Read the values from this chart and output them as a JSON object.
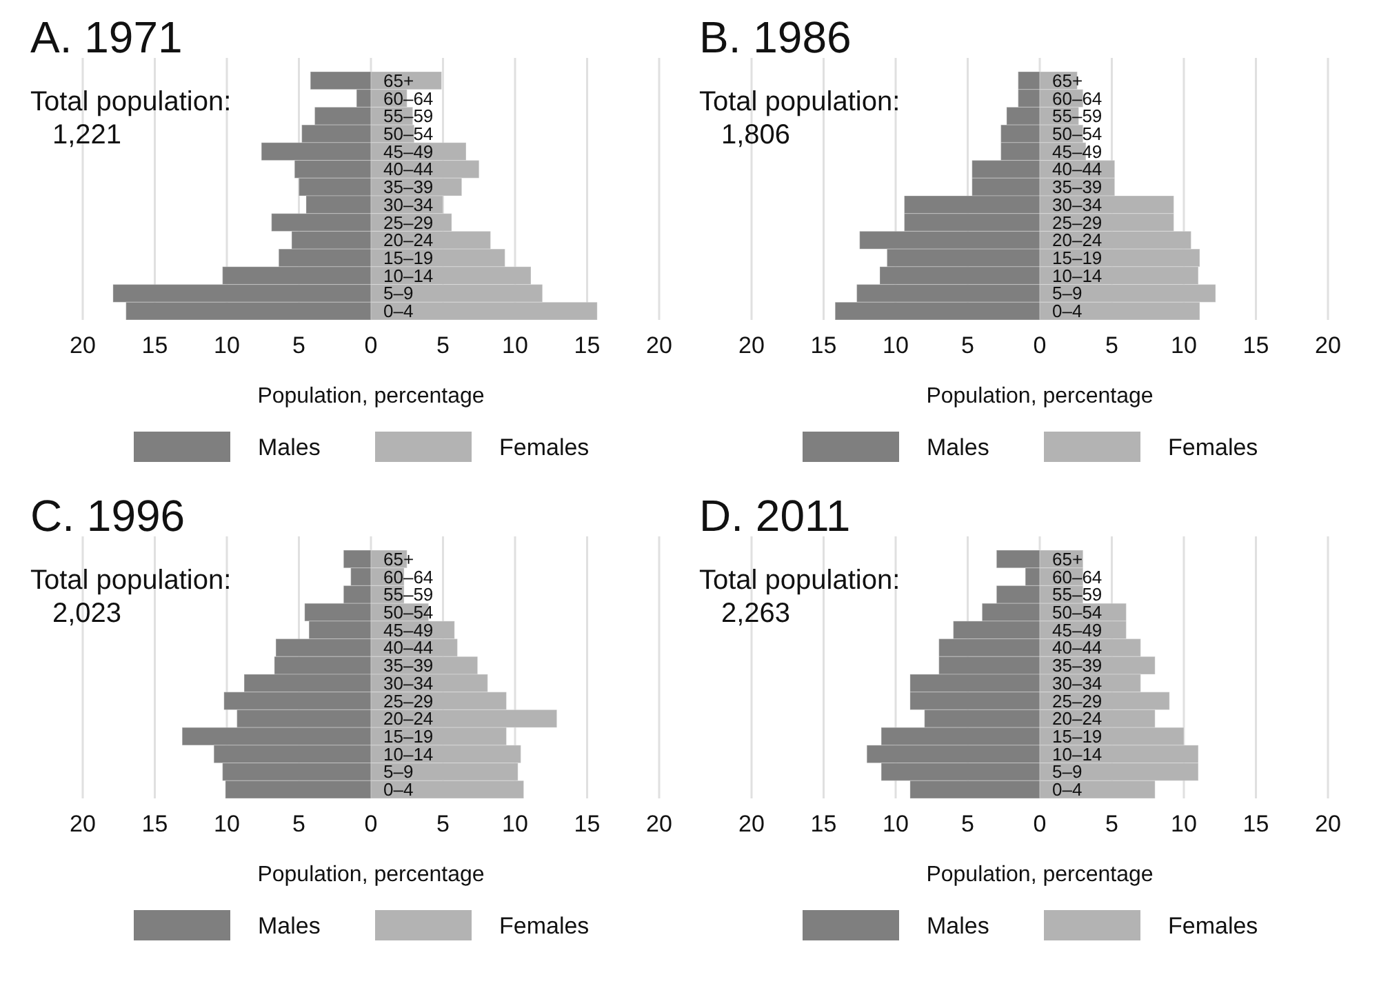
{
  "chart_data": [
    {
      "type": "bar",
      "orientation": "horizontal",
      "stacked": true,
      "title": "A. 1971",
      "subtitle": "Total population:",
      "annotations": [
        "1,221"
      ],
      "xlabel": "Population, percentage",
      "categories": [
        "65+",
        "60–64",
        "55–59",
        "50–54",
        "45–49",
        "40–44",
        "35–39",
        "30–34",
        "25–29",
        "20–24",
        "15–19",
        "10–14",
        "5–9",
        "0–4"
      ],
      "series": [
        {
          "name": "Males",
          "color": "#7f7f7f",
          "values": [
            -4.2,
            -1.0,
            -3.9,
            -4.8,
            -7.6,
            -5.3,
            -5.0,
            -4.5,
            -6.9,
            -5.5,
            -6.4,
            -10.3,
            -17.9,
            -17.0
          ]
        },
        {
          "name": "Females",
          "color": "#b3b3b3",
          "values": [
            4.9,
            2.5,
            2.9,
            3.0,
            6.6,
            7.5,
            6.3,
            5.0,
            5.6,
            8.3,
            9.3,
            11.1,
            11.9,
            15.7
          ]
        }
      ],
      "xlim": [
        -20,
        20
      ],
      "xticks": [
        {
          "value": -20,
          "label": "20"
        },
        {
          "value": -15,
          "label": "15"
        },
        {
          "value": -10,
          "label": "10"
        },
        {
          "value": -5,
          "label": "5"
        },
        0,
        5,
        10,
        15,
        20
      ],
      "grid": "x",
      "legend": "bottom"
    },
    {
      "type": "bar",
      "orientation": "horizontal",
      "stacked": true,
      "title": "B. 1986",
      "subtitle": "Total population:",
      "annotations": [
        "1,806"
      ],
      "xlabel": "Population, percentage",
      "categories": [
        "65+",
        "60–64",
        "55–59",
        "50–54",
        "45–49",
        "40–44",
        "35–39",
        "30–34",
        "25–29",
        "20–24",
        "15–19",
        "10–14",
        "5–9",
        "0–4"
      ],
      "series": [
        {
          "name": "Males",
          "color": "#7f7f7f",
          "values": [
            -1.5,
            -1.5,
            -2.3,
            -2.7,
            -2.7,
            -4.7,
            -4.7,
            -9.4,
            -9.4,
            -12.5,
            -10.6,
            -11.1,
            -12.7,
            -14.2
          ]
        },
        {
          "name": "Females",
          "color": "#b3b3b3",
          "values": [
            2.6,
            3.0,
            2.7,
            3.0,
            3.2,
            5.2,
            5.2,
            9.3,
            9.3,
            10.5,
            11.1,
            11.0,
            12.2,
            11.1
          ]
        }
      ],
      "xlim": [
        -20,
        20
      ],
      "xticks": [
        {
          "value": -20,
          "label": "20"
        },
        {
          "value": -15,
          "label": "15"
        },
        {
          "value": -10,
          "label": "10"
        },
        {
          "value": -5,
          "label": "5"
        },
        0,
        5,
        10,
        15,
        20
      ],
      "grid": "x",
      "legend": "bottom"
    },
    {
      "type": "bar",
      "orientation": "horizontal",
      "stacked": true,
      "title": "C. 1996",
      "subtitle": "Total population:",
      "annotations": [
        "2,023"
      ],
      "xlabel": "Population, percentage",
      "categories": [
        "65+",
        "60–64",
        "55–59",
        "50–54",
        "45–49",
        "40–44",
        "35–39",
        "30–34",
        "25–29",
        "20–24",
        "15–19",
        "10–14",
        "5–9",
        "0–4"
      ],
      "series": [
        {
          "name": "Males",
          "color": "#7f7f7f",
          "values": [
            -1.9,
            -1.4,
            -1.9,
            -4.6,
            -4.3,
            -6.6,
            -6.7,
            -8.8,
            -10.2,
            -9.3,
            -13.1,
            -10.9,
            -10.3,
            -10.1
          ]
        },
        {
          "name": "Females",
          "color": "#b3b3b3",
          "values": [
            2.5,
            2.3,
            2.3,
            4.0,
            5.8,
            6.0,
            7.4,
            8.1,
            9.4,
            12.9,
            9.4,
            10.4,
            10.2,
            10.6
          ]
        }
      ],
      "xlim": [
        -20,
        20
      ],
      "xticks": [
        {
          "value": -20,
          "label": "20"
        },
        {
          "value": -15,
          "label": "15"
        },
        {
          "value": -10,
          "label": "10"
        },
        {
          "value": -5,
          "label": "5"
        },
        0,
        5,
        10,
        15,
        20
      ],
      "grid": "x",
      "legend": "bottom"
    },
    {
      "type": "bar",
      "orientation": "horizontal",
      "stacked": true,
      "title": "D. 2011",
      "subtitle": "Total population:",
      "annotations": [
        "2,263"
      ],
      "xlabel": "Population, percentage",
      "categories": [
        "65+",
        "60–64",
        "55–59",
        "50–54",
        "45–49",
        "40–44",
        "35–39",
        "30–34",
        "25–29",
        "20–24",
        "15–19",
        "10–14",
        "5–9",
        "0–4"
      ],
      "series": [
        {
          "name": "Males",
          "color": "#7f7f7f",
          "values": [
            -3.0,
            -1.0,
            -3.0,
            -4.0,
            -6.0,
            -7.0,
            -7.0,
            -9.0,
            -9.0,
            -8.0,
            -11.0,
            -12.0,
            -11.0,
            -9.0
          ]
        },
        {
          "name": "Females",
          "color": "#b3b3b3",
          "values": [
            3.0,
            3.0,
            3.0,
            6.0,
            6.0,
            7.0,
            8.0,
            7.0,
            9.0,
            8.0,
            10.0,
            11.0,
            11.0,
            8.0
          ]
        }
      ],
      "xlim": [
        -20,
        20
      ],
      "xticks": [
        {
          "value": -20,
          "label": "20"
        },
        {
          "value": -15,
          "label": "15"
        },
        {
          "value": -10,
          "label": "10"
        },
        {
          "value": -5,
          "label": "5"
        },
        0,
        5,
        10,
        15,
        20
      ],
      "grid": "x",
      "legend": "bottom"
    }
  ]
}
